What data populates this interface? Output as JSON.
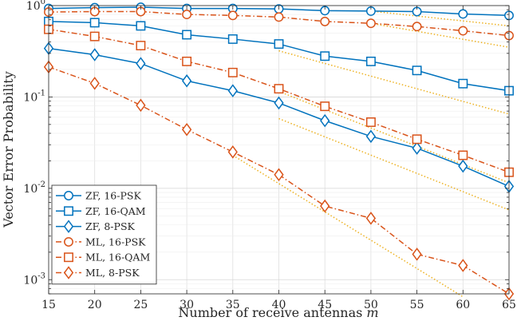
{
  "chart_data": {
    "type": "line",
    "title": "",
    "xlabel": "Number of receive antennas",
    "xlabel_symbol": "m",
    "ylabel": "Vector Error Probability",
    "yscale": "log",
    "xlim": [
      15,
      65
    ],
    "ylim": [
      0.0007,
      1
    ],
    "grid": true,
    "legend_position": "bottom-left",
    "x": [
      15,
      20,
      25,
      30,
      35,
      40,
      45,
      50,
      55,
      60,
      65
    ],
    "x_tick_labels": [
      "15",
      "20",
      "25",
      "30",
      "35",
      "40",
      "45",
      "50",
      "55",
      "60",
      "65"
    ],
    "y_tick_labels": [
      {
        "base": "10",
        "exp": "0",
        "value": 1
      },
      {
        "base": "10",
        "exp": "-1",
        "value": 0.1
      },
      {
        "base": "10",
        "exp": "-2",
        "value": 0.01
      },
      {
        "base": "10",
        "exp": "-3",
        "value": 0.001
      }
    ],
    "series": [
      {
        "name": "ZF, 16-PSK",
        "color": "#0072BD",
        "dash": "solid",
        "marker": "circle",
        "values": [
          0.93,
          0.95,
          0.96,
          0.93,
          0.93,
          0.92,
          0.88,
          0.87,
          0.86,
          0.81,
          0.78
        ]
      },
      {
        "name": "ZF, 16-QAM",
        "color": "#0072BD",
        "dash": "solid",
        "marker": "square",
        "values": [
          0.67,
          0.65,
          0.6,
          0.48,
          0.43,
          0.38,
          0.28,
          0.245,
          0.195,
          0.14,
          0.117
        ]
      },
      {
        "name": "ZF, 8-PSK",
        "color": "#0072BD",
        "dash": "solid",
        "marker": "diamond",
        "values": [
          0.34,
          0.29,
          0.232,
          0.15,
          0.117,
          0.086,
          0.055,
          0.037,
          0.0275,
          0.0175,
          0.0105
        ]
      },
      {
        "name": "ML, 16-PSK",
        "color": "#D95319",
        "dash": "dashdot",
        "marker": "circle",
        "values": [
          0.85,
          0.86,
          0.86,
          0.8,
          0.78,
          0.75,
          0.67,
          0.64,
          0.59,
          0.53,
          0.47
        ]
      },
      {
        "name": "ML, 16-QAM",
        "color": "#D95319",
        "dash": "dashdot",
        "marker": "square",
        "values": [
          0.55,
          0.46,
          0.365,
          0.245,
          0.185,
          0.123,
          0.079,
          0.053,
          0.0345,
          0.023,
          0.015
        ]
      },
      {
        "name": "ML, 8-PSK",
        "color": "#D95319",
        "dash": "dashdot",
        "marker": "diamond",
        "values": [
          0.213,
          0.141,
          0.081,
          0.044,
          0.025,
          0.0141,
          0.0064,
          0.0047,
          0.0019,
          0.00143,
          0.0007
        ]
      }
    ],
    "reference_lines": {
      "color": "#EDB120",
      "dash": "dotted",
      "lines": [
        {
          "x": [
            50,
            65
          ],
          "y": [
            0.87,
            0.6
          ]
        },
        {
          "x": [
            50,
            65
          ],
          "y": [
            0.64,
            0.35
          ]
        },
        {
          "x": [
            40,
            65
          ],
          "y": [
            0.32,
            0.065
          ]
        },
        {
          "x": [
            40,
            65
          ],
          "y": [
            0.115,
            0.0115
          ]
        },
        {
          "x": [
            40,
            65
          ],
          "y": [
            0.058,
            0.0058
          ]
        },
        {
          "x": [
            35,
            60
          ],
          "y": [
            0.023,
            0.00065
          ]
        }
      ]
    }
  }
}
